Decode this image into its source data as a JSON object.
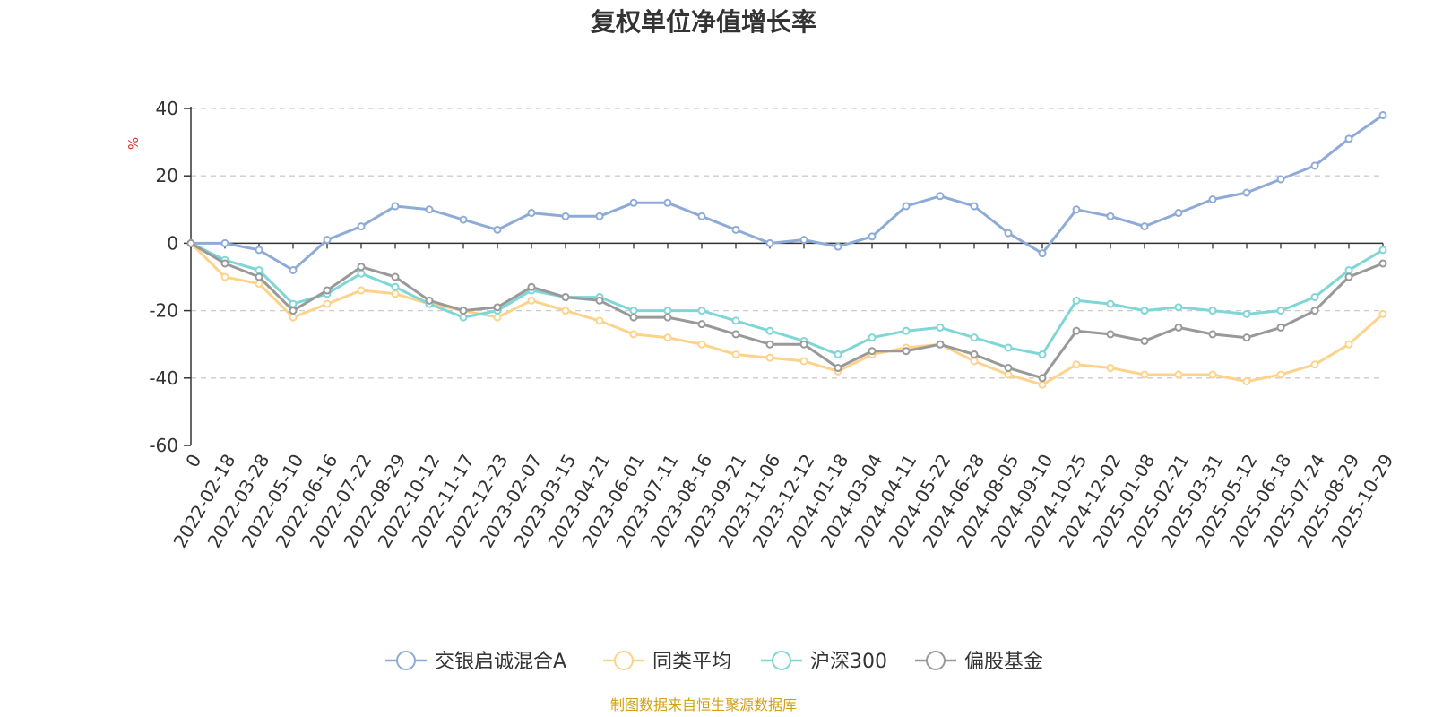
{
  "chart_data": {
    "type": "line",
    "title": "复权单位净值增长率",
    "ylabel": "%",
    "ylim": [
      -60,
      40
    ],
    "yticks": [
      "40",
      "20",
      "0",
      "-20",
      "-40",
      "-60"
    ],
    "categories": [
      "0",
      "2022-02-18",
      "2022-03-28",
      "2022-05-10",
      "2022-06-16",
      "2022-07-22",
      "2022-08-29",
      "2022-10-12",
      "2022-11-17",
      "2022-12-23",
      "2023-02-07",
      "2023-03-15",
      "2023-04-21",
      "2023-06-01",
      "2023-07-11",
      "2023-08-16",
      "2023-09-21",
      "2023-11-06",
      "2023-12-12",
      "2024-01-18",
      "2024-03-04",
      "2024-04-11",
      "2024-05-22",
      "2024-06-28",
      "2024-08-05",
      "2024-09-10",
      "2024-10-25",
      "2024-12-02",
      "2025-01-08",
      "2025-02-21",
      "2025-03-31",
      "2025-05-12",
      "2025-06-18",
      "2025-07-24",
      "2025-08-29",
      "2025-10-29"
    ],
    "grid": "horizontal-dashed",
    "legend": "bottom-center",
    "series": [
      {
        "name": "交银启诚混合A",
        "color": "#8eabd8",
        "values": [
          0,
          0,
          -2,
          -8,
          1,
          5,
          11,
          10,
          7,
          4,
          9,
          8,
          8,
          12,
          12,
          8,
          4,
          0,
          1,
          -1,
          2,
          11,
          14,
          11,
          3,
          -3,
          10,
          8,
          5,
          9,
          13,
          15,
          19,
          23,
          31,
          38
        ]
      },
      {
        "name": "同类平均",
        "color": "#fdd38c",
        "values": [
          0,
          -10,
          -12,
          -22,
          -18,
          -14,
          -15,
          -18,
          -20,
          -22,
          -17,
          -20,
          -23,
          -27,
          -28,
          -30,
          -33,
          -34,
          -35,
          -38,
          -33,
          -31,
          -30,
          -35,
          -39,
          -42,
          -36,
          -37,
          -39,
          -39,
          -39,
          -41,
          -39,
          -36,
          -30,
          -21
        ]
      },
      {
        "name": "沪深300",
        "color": "#7fd6d6",
        "values": [
          0,
          -5,
          -8,
          -18,
          -15,
          -9,
          -13,
          -18,
          -22,
          -20,
          -14,
          -16,
          -16,
          -20,
          -20,
          -20,
          -23,
          -26,
          -29,
          -33,
          -28,
          -26,
          -25,
          -28,
          -31,
          -33,
          -17,
          -18,
          -20,
          -19,
          -20,
          -21,
          -20,
          -16,
          -8,
          -2
        ]
      },
      {
        "name": "偏股基金",
        "color": "#999999",
        "values": [
          0,
          -6,
          -10,
          -20,
          -14,
          -7,
          -10,
          -17,
          -20,
          -19,
          -13,
          -16,
          -17,
          -22,
          -22,
          -24,
          -27,
          -30,
          -30,
          -37,
          -32,
          -32,
          -30,
          -33,
          -37,
          -40,
          -26,
          -27,
          -29,
          -25,
          -27,
          -28,
          -25,
          -20,
          -10,
          -6
        ]
      }
    ]
  },
  "source_text": "制图数据来自恒生聚源数据库",
  "source_color": "#d4a017",
  "unit_color": "#e03030"
}
